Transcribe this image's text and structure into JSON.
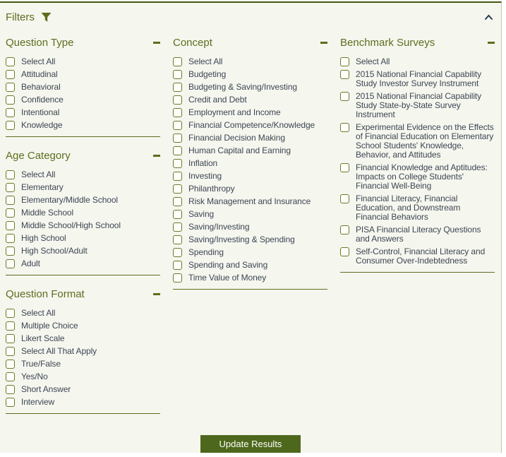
{
  "filters_panel": {
    "title": "Filters",
    "icons": {
      "funnel": "funnel-icon",
      "collapse_panel": "chevron-up-icon",
      "collapse_section": "minus-icon"
    },
    "colors": {
      "accent_olive": "#5c6e1e",
      "top_border": "#44580d",
      "label_text": "#3d4653",
      "panel_background": "#f5f6ee",
      "button_background": "#4d681c",
      "button_text": "#ffffff"
    },
    "update_button_label": "Update Results"
  },
  "columns": [
    {
      "sections": [
        {
          "title": "Question Type",
          "items": [
            "Select All",
            "Attitudinal",
            "Behavioral",
            "Confidence",
            "Intentional",
            "Knowledge"
          ]
        },
        {
          "title": "Age Category",
          "items": [
            "Select All",
            "Elementary",
            "Elementary/Middle School",
            "Middle School",
            "Middle School/High School",
            "High School",
            "High School/Adult",
            "Adult"
          ]
        },
        {
          "title": "Question Format",
          "items": [
            "Select All",
            "Multiple Choice",
            "Likert Scale",
            "Select All That Apply",
            "True/False",
            "Yes/No",
            "Short Answer",
            "Interview"
          ]
        }
      ]
    },
    {
      "sections": [
        {
          "title": "Concept",
          "items": [
            "Select All",
            "Budgeting",
            "Budgeting & Saving/Investing",
            "Credit and Debt",
            "Employment and Income",
            "Financial Competence/Knowledge",
            "Financial Decision Making",
            "Human Capital and Earning",
            "Inflation",
            "Investing",
            "Philanthropy",
            "Risk Management and Insurance",
            "Saving",
            "Saving/Investing",
            "Saving/Investing & Spending",
            "Spending",
            "Spending and Saving",
            "Time Value of Money"
          ]
        }
      ]
    },
    {
      "sections": [
        {
          "title": "Benchmark Surveys",
          "items": [
            "Select All",
            "2015 National Financial Capability Study Investor Survey Instrument",
            "2015 National Financial Capability Study State-by-State Survey Instrument",
            "Experimental Evidence on the Effects of Financial Education on Elementary School Students' Knowledge, Behavior, and Attitudes",
            "Financial Knowledge and Aptitudes: Impacts on College Students' Financial Well-Being",
            "Financial Literacy, Financial Education, and Downstream Financial Behaviors",
            "PISA Financial Literacy Questions and Answers",
            "Self-Control, Financial Literacy and Consumer Over-Indebtedness"
          ]
        }
      ]
    }
  ]
}
